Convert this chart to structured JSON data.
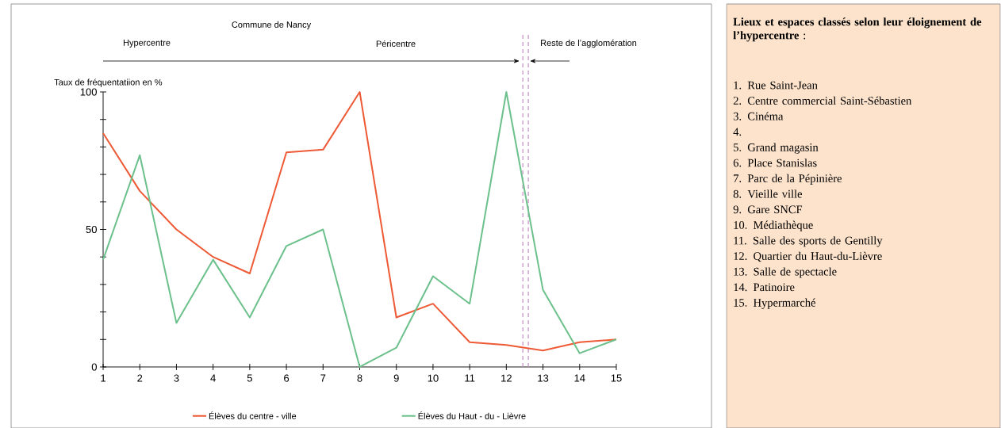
{
  "chart_data": {
    "type": "line",
    "ylabel": "Taux de fréquentatiion en %",
    "xlim": [
      1,
      15
    ],
    "xticks": [
      1,
      2,
      3,
      4,
      5,
      6,
      7,
      8,
      9,
      10,
      11,
      12,
      13,
      14,
      15
    ],
    "ylim": [
      0,
      100
    ],
    "yticks": [
      0,
      {
        "value": 10,
        "label": null
      },
      {
        "value": 20,
        "label": null
      },
      {
        "value": 30,
        "label": null
      },
      {
        "value": 40,
        "label": null
      },
      50,
      {
        "value": 60,
        "label": null
      },
      {
        "value": 70,
        "label": null
      },
      {
        "value": 80,
        "label": null
      },
      {
        "value": 90,
        "label": null
      },
      100
    ],
    "grid": false,
    "legend": "bottom",
    "marker": "none",
    "line_style": "solid",
    "series": [
      {
        "name": "Élèves du centre - ville",
        "color": "#ee5a36",
        "x": [
          1,
          2,
          3,
          4,
          5,
          6,
          7,
          8,
          9,
          10,
          11,
          12,
          13,
          14,
          15
        ],
        "values": [
          85,
          64,
          50,
          40,
          34,
          78,
          79,
          100,
          18,
          23,
          9,
          8,
          6,
          9,
          10
        ]
      },
      {
        "name": "Élèves du Haut - du - Lièvre",
        "color": "#6cc08b",
        "x": [
          1,
          2,
          3,
          4,
          5,
          6,
          7,
          8,
          9,
          10,
          11,
          12,
          13,
          14,
          15
        ],
        "values": [
          39,
          77,
          16,
          39,
          18,
          44,
          50,
          0,
          7,
          33,
          23,
          100,
          28,
          5,
          10
        ]
      }
    ],
    "ref_lines": [
      {
        "axis": "x",
        "value": 12.45,
        "color": "#c58cc4",
        "line_style": "dashed"
      },
      {
        "axis": "x",
        "value": 12.6,
        "color": "#c58cc4",
        "line_style": "dashed"
      }
    ],
    "annotations": [
      "Commune de Nancy",
      "Hypercentre",
      "Péricentre",
      "Reste de l’agglomération",
      "**Lieux et espaces classés selon leur éloignement de l’hypercentre** :",
      "1. Rue Saint-Jean",
      "2. Centre commercial Saint-Sébastien",
      "3. Cinéma",
      "4.",
      "5. Grand magasin",
      "6. Place Stanislas",
      "7. Parc de la Pépinière",
      "8. Vieille ville",
      "9. Gare SNCF",
      "10. Médiathèque",
      "11. Salle des sports de Gentilly",
      "12. Quartier du Haut-du-Lièvre",
      "13. Salle de spectacle",
      "14. Patinoire",
      "15. Hypermarché"
    ]
  }
}
